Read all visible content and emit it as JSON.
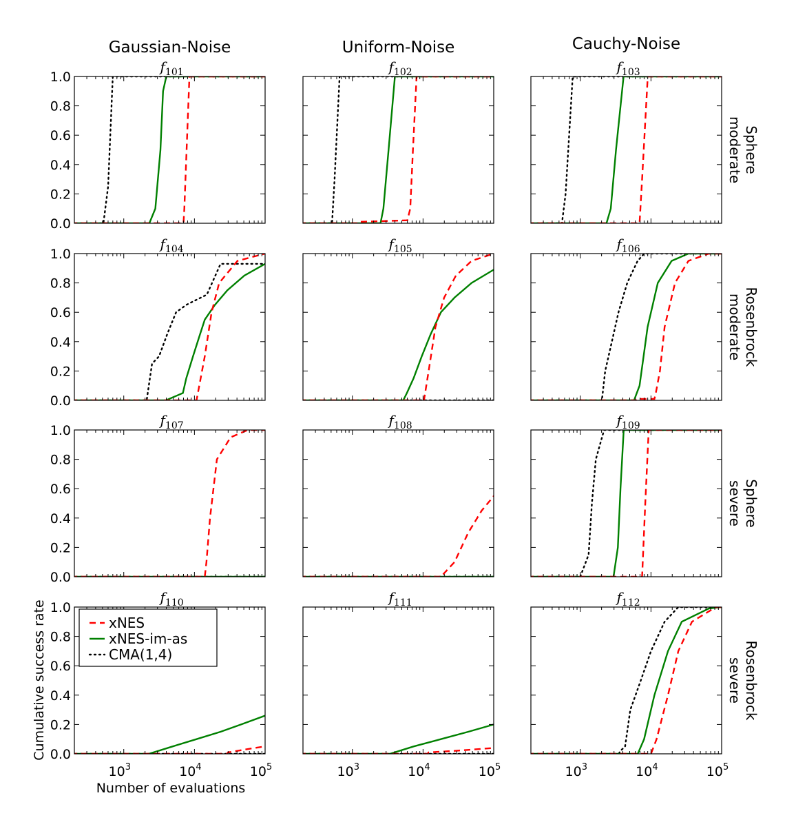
{
  "chart_data": {
    "type": "line",
    "layout": "grid 4 rows x 3 columns",
    "column_titles": [
      "Gaussian-Noise",
      "Uniform-Noise",
      "Cauchy-Noise"
    ],
    "row_labels": [
      [
        "Sphere",
        "moderate"
      ],
      [
        "Rosenbrock",
        "moderate"
      ],
      [
        "Sphere",
        "severe"
      ],
      [
        "Rosenbrock",
        "severe"
      ]
    ],
    "xlabel": "Number of evaluations",
    "ylabel": "Cumulative success rate",
    "xscale": "log",
    "xlim": [
      200,
      100000
    ],
    "ylim": [
      0,
      1
    ],
    "xticks": [
      1000,
      10000,
      100000
    ],
    "xtick_labels": [
      [
        "10",
        "3"
      ],
      [
        "10",
        "4"
      ],
      [
        "10",
        "5"
      ]
    ],
    "yticks": [
      0,
      0.2,
      0.4,
      0.6,
      0.8,
      1.0
    ],
    "ytick_labels": [
      "0.0",
      "0.2",
      "0.4",
      "0.6",
      "0.8",
      "1.0"
    ],
    "grid": false,
    "legend": {
      "placement": "upper-left of f110 panel",
      "entries": [
        {
          "name": "xNES",
          "color": "#ff0000",
          "style": "dashed"
        },
        {
          "name": "xNES-im-as",
          "color": "#008000",
          "style": "solid"
        },
        {
          "name": "CMA(1,4)",
          "color": "#000000",
          "style": "dotted"
        }
      ]
    },
    "panels": [
      {
        "title": [
          "f",
          "101"
        ],
        "series": {
          "xNES": [
            [
              7000,
              0
            ],
            [
              7200,
              0.1
            ],
            [
              8500,
              1
            ]
          ],
          "xNES-im-as": [
            [
              2300,
              0
            ],
            [
              2800,
              0.1
            ],
            [
              3300,
              0.5
            ],
            [
              3600,
              0.9
            ],
            [
              4000,
              1
            ]
          ],
          "CMA(1,4)": [
            [
              515,
              0
            ],
            [
              600,
              0.25
            ],
            [
              700,
              1
            ]
          ]
        }
      },
      {
        "title": [
          "f",
          "102"
        ],
        "series": {
          "xNES": [
            [
              1250,
              0
            ],
            [
              1300,
              0.01
            ],
            [
              6000,
              0.02
            ],
            [
              6600,
              0.1
            ],
            [
              7200,
              0.5
            ],
            [
              8100,
              1
            ]
          ],
          "xNES-im-as": [
            [
              2500,
              0
            ],
            [
              2750,
              0.1
            ],
            [
              3250,
              0.5
            ],
            [
              4000,
              1
            ]
          ],
          "CMA(1,4)": [
            [
              515,
              0
            ],
            [
              560,
              0.3
            ],
            [
              660,
              1
            ]
          ]
        }
      },
      {
        "title": [
          "f",
          "103"
        ],
        "series": {
          "xNES": [
            [
              6900,
              0
            ],
            [
              7500,
              0.3
            ],
            [
              9000,
              1
            ]
          ],
          "xNES-im-as": [
            [
              2350,
              0
            ],
            [
              2700,
              0.1
            ],
            [
              3200,
              0.5
            ],
            [
              4100,
              1
            ]
          ],
          "CMA(1,4)": [
            [
              550,
              0
            ],
            [
              620,
              0.2
            ],
            [
              780,
              1
            ]
          ]
        }
      },
      {
        "title": [
          "f",
          "104"
        ],
        "series": {
          "xNES": [
            [
              10700,
              0
            ],
            [
              14000,
              0.3
            ],
            [
              17500,
              0.6
            ],
            [
              22400,
              0.8
            ],
            [
              40700,
              0.95
            ],
            [
              100000,
              1
            ]
          ],
          "xNES-im-as": [
            [
              3940,
              0
            ],
            [
              6870,
              0.05
            ],
            [
              7670,
              0.15
            ],
            [
              9550,
              0.3
            ],
            [
              12000,
              0.45
            ],
            [
              14000,
              0.55
            ],
            [
              19500,
              0.65
            ],
            [
              29200,
              0.75
            ],
            [
              50800,
              0.85
            ],
            [
              100000,
              0.93
            ]
          ],
          "CMA(1,4)": [
            [
              2110,
              0
            ],
            [
              2510,
              0.25
            ],
            [
              3160,
              0.3
            ],
            [
              4120,
              0.45
            ],
            [
              5500,
              0.6
            ],
            [
              7670,
              0.65
            ],
            [
              15000,
              0.72
            ],
            [
              23400,
              0.93
            ],
            [
              100000,
              0.93
            ]
          ]
        }
      },
      {
        "title": [
          "f",
          "105"
        ],
        "series": {
          "xNES": [
            [
              10300,
              0
            ],
            [
              12000,
              0.2
            ],
            [
              15000,
              0.5
            ],
            [
              19900,
              0.7
            ],
            [
              29200,
              0.85
            ],
            [
              48700,
              0.95
            ],
            [
              100000,
              1
            ]
          ],
          "xNES-im-as": [
            [
              5250,
              0
            ],
            [
              5900,
              0.05
            ],
            [
              7350,
              0.15
            ],
            [
              9600,
              0.3
            ],
            [
              12800,
              0.45
            ],
            [
              17900,
              0.6
            ],
            [
              27900,
              0.7
            ],
            [
              48700,
              0.8
            ],
            [
              100000,
              0.89
            ]
          ],
          "CMA(1,4)": []
        }
      },
      {
        "title": [
          "f",
          "106"
        ],
        "series": {
          "xNES": [
            [
              7000,
              0
            ],
            [
              7200,
              0.01
            ],
            [
              11200,
              0.01
            ],
            [
              11700,
              0.05
            ],
            [
              13400,
              0.2
            ],
            [
              15600,
              0.5
            ],
            [
              21900,
              0.8
            ],
            [
              33900,
              0.95
            ],
            [
              66000,
              1
            ]
          ],
          "xNES-im-as": [
            [
              5760,
              0
            ],
            [
              6900,
              0.1
            ],
            [
              8970,
              0.5
            ],
            [
              12500,
              0.8
            ],
            [
              19600,
              0.95
            ],
            [
              33900,
              1
            ]
          ],
          "CMA(1,4)": [
            [
              2020,
              0
            ],
            [
              2250,
              0.2
            ],
            [
              2800,
              0.4
            ],
            [
              3470,
              0.6
            ],
            [
              4620,
              0.8
            ],
            [
              6470,
              0.95
            ],
            [
              8040,
              1
            ]
          ]
        }
      },
      {
        "title": [
          "f",
          "107"
        ],
        "series": {
          "xNES": [
            [
              14000,
              0
            ],
            [
              14800,
              0.1
            ],
            [
              16600,
              0.4
            ],
            [
              20800,
              0.8
            ],
            [
              32600,
              0.95
            ],
            [
              56900,
              1
            ]
          ],
          "xNES-im-as": [],
          "CMA(1,4)": []
        }
      },
      {
        "title": [
          "f",
          "108"
        ],
        "series": {
          "xNES": [
            [
              17900,
              0
            ],
            [
              27900,
              0.1
            ],
            [
              43600,
              0.3
            ],
            [
              67600,
              0.45
            ],
            [
              100000,
              0.55
            ]
          ],
          "xNES-im-as": [],
          "CMA(1,4)": []
        }
      },
      {
        "title": [
          "f",
          "109"
        ],
        "series": {
          "xNES": [
            [
              7500,
              0
            ],
            [
              8300,
              0.5
            ],
            [
              9300,
              1
            ]
          ],
          "xNES-im-as": [
            [
              2950,
              0
            ],
            [
              3400,
              0.2
            ],
            [
              3700,
              0.6
            ],
            [
              4120,
              1
            ]
          ],
          "CMA(1,4)": [
            [
              1000,
              0
            ],
            [
              1310,
              0.15
            ],
            [
              1460,
              0.5
            ],
            [
              1660,
              0.8
            ],
            [
              1900,
              0.9
            ],
            [
              2170,
              1
            ]
          ]
        }
      },
      {
        "title": [
          "f",
          "110"
        ],
        "series": {
          "xNES": [
            [
              29200,
              0
            ],
            [
              30000,
              0.01
            ],
            [
              70800,
              0.04
            ],
            [
              100000,
              0.05
            ]
          ],
          "xNES-im-as": [
            [
              2260,
              0
            ],
            [
              4900,
              0.05
            ],
            [
              10700,
              0.1
            ],
            [
              23400,
              0.15
            ],
            [
              45700,
              0.2
            ],
            [
              100000,
              0.26
            ]
          ],
          "CMA(1,4)": []
        }
      },
      {
        "title": [
          "f",
          "111"
        ],
        "series": {
          "xNES": [
            [
              11500,
              0
            ],
            [
              12000,
              0.01
            ],
            [
              27900,
              0.02
            ],
            [
              100000,
              0.04
            ]
          ],
          "xNES-im-as": [
            [
              3390,
              0
            ],
            [
              7350,
              0.05
            ],
            [
              17900,
              0.1
            ],
            [
              43600,
              0.15
            ],
            [
              100000,
              0.2
            ]
          ],
          "CMA(1,4)": []
        }
      },
      {
        "title": [
          "f",
          "112"
        ],
        "series": {
          "xNES": [
            [
              10000,
              0
            ],
            [
              12000,
              0.1
            ],
            [
              17400,
              0.4
            ],
            [
              24400,
              0.7
            ],
            [
              38000,
              0.9
            ],
            [
              83000,
              1
            ]
          ],
          "xNES-im-as": [
            [
              6500,
              0
            ],
            [
              8000,
              0.1
            ],
            [
              11200,
              0.4
            ],
            [
              17400,
              0.7
            ],
            [
              27300,
              0.9
            ],
            [
              66000,
              0.99
            ],
            [
              100000,
              1
            ]
          ],
          "CMA(1,4)": [
            [
              3500,
              0
            ],
            [
              3700,
              0.02
            ],
            [
              4300,
              0.05
            ],
            [
              5100,
              0.3
            ],
            [
              7180,
              0.5
            ],
            [
              10000,
              0.7
            ],
            [
              15600,
              0.9
            ],
            [
              24400,
              1
            ]
          ]
        }
      }
    ]
  }
}
